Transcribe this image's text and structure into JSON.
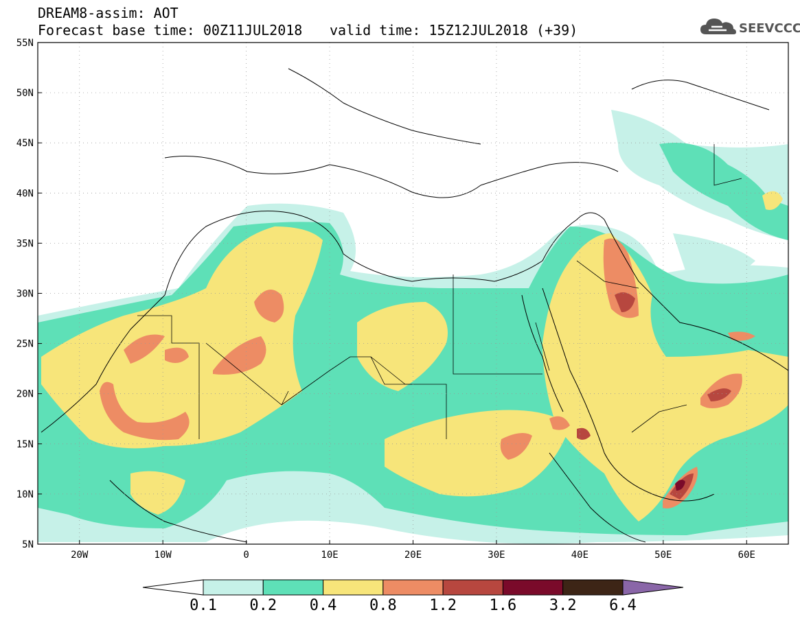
{
  "header": {
    "line1": "DREAM8-assim: AOT",
    "line2": "Forecast base time: 00Z11JUL2018",
    "valid": "valid time: 15Z12JUL2018 (+39)",
    "logo_text": "SEEVCCC",
    "logo_icon": "cloud-logo-icon"
  },
  "map": {
    "lat_labels": [
      "55N",
      "50N",
      "45N",
      "40N",
      "35N",
      "30N",
      "25N",
      "20N",
      "15N",
      "10N",
      "5N"
    ],
    "lon_labels": [
      "20W",
      "10W",
      "0",
      "10E",
      "20E",
      "30E",
      "40E",
      "50E",
      "60E"
    ],
    "lon_range": [
      -25,
      65
    ],
    "lat_range": [
      5,
      55
    ]
  },
  "colorbar": {
    "levels": [
      "0.1",
      "0.2",
      "0.4",
      "0.8",
      "1.2",
      "1.6",
      "3.2",
      "6.4"
    ],
    "colors": [
      "#ffffff",
      "#c6f1e8",
      "#5ee0b7",
      "#f7e57a",
      "#ed8c64",
      "#b7473f",
      "#7a0a2a",
      "#3d2516",
      "#8a66a8"
    ]
  },
  "colors": {
    "c1": "#c6f1e8",
    "c2": "#5ee0b7",
    "c3": "#f7e57a",
    "c4": "#ed8c64",
    "c5": "#b7473f",
    "c6": "#7a0a2a"
  }
}
